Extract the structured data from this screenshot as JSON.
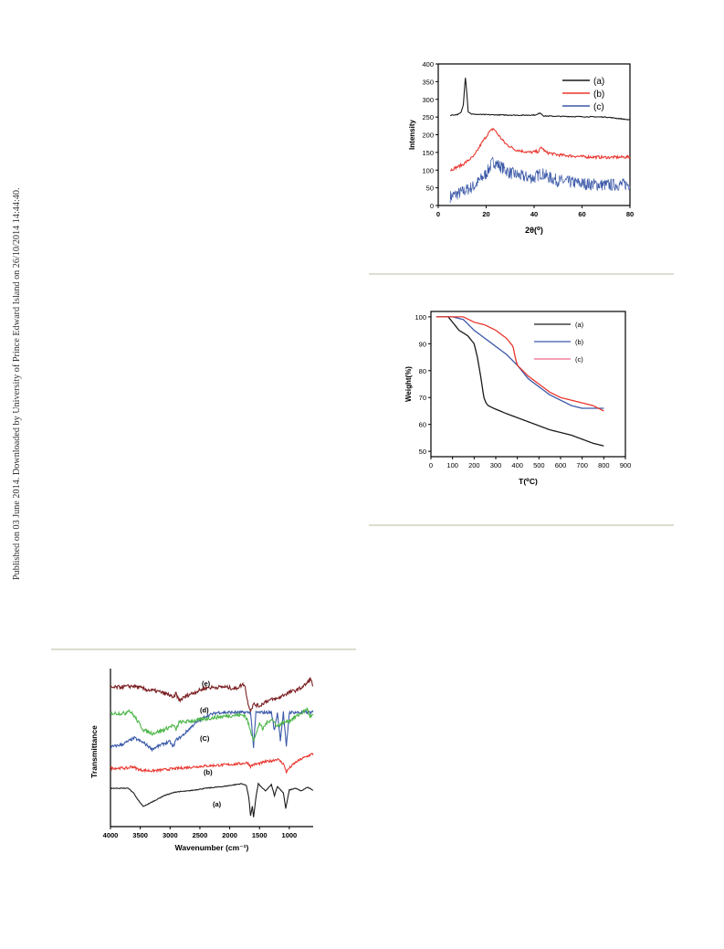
{
  "page": {
    "side_note": "Published on 03 June 2014. Downloaded by University of Prince Edward Island on 26/10/2014 14:44:40."
  },
  "colors": {
    "rule": "#dcdccf",
    "black": "#1a1a1a",
    "red": "#e8372f",
    "blue": "#3b59a8",
    "green": "#4cb648",
    "maroon": "#7a1f22",
    "pink": "#ee6b8a"
  },
  "chart_data": [
    {
      "type": "line",
      "figure": "xrd",
      "xlabel": "2θ(⁰)",
      "ylabel": "Intensity",
      "xlim": [
        0,
        80
      ],
      "ylim": [
        0,
        400
      ],
      "xticks": [
        "0",
        "20",
        "40",
        "60",
        "80"
      ],
      "yticks": [
        "0",
        "50",
        "100",
        "150",
        "200",
        "250",
        "300",
        "350",
        "400"
      ],
      "legend_placement": "top-right",
      "series": [
        {
          "name": "(a)",
          "color": "#1a1a1a",
          "noise": 1.2,
          "x": [
            5,
            8,
            9.5,
            10.5,
            11.3,
            11.8,
            12.5,
            14,
            18,
            25,
            35,
            41,
            42.5,
            44,
            50,
            60,
            70,
            80
          ],
          "y": [
            255,
            257,
            262,
            285,
            365,
            330,
            265,
            258,
            257,
            256,
            255,
            256,
            262,
            253,
            252,
            251,
            250,
            242
          ]
        },
        {
          "name": "(b)",
          "color": "#e8372f",
          "noise": 4,
          "x": [
            5,
            10,
            15,
            18,
            21,
            23,
            25,
            28,
            32,
            38,
            42,
            43,
            45,
            50,
            60,
            70,
            80
          ],
          "y": [
            100,
            115,
            140,
            175,
            205,
            218,
            200,
            175,
            158,
            150,
            153,
            165,
            150,
            143,
            138,
            136,
            137
          ]
        },
        {
          "name": "(c)",
          "color": "#3b59a8",
          "noise": 18,
          "x": [
            5,
            10,
            15,
            20,
            23,
            26,
            30,
            35,
            40,
            43,
            46,
            50,
            60,
            70,
            80
          ],
          "y": [
            25,
            38,
            55,
            90,
            125,
            110,
            92,
            82,
            78,
            92,
            80,
            70,
            62,
            58,
            60
          ]
        }
      ]
    },
    {
      "type": "line",
      "figure": "tga",
      "xlabel": "T(⁰C)",
      "ylabel": "Weight(%)",
      "xlim": [
        0,
        900
      ],
      "ylim": [
        48,
        102
      ],
      "xticks": [
        "0",
        "100",
        "200",
        "300",
        "400",
        "500",
        "600",
        "700",
        "800",
        "900"
      ],
      "yticks": [
        "50",
        "60",
        "70",
        "80",
        "90",
        "100"
      ],
      "legend_placement": "top-right",
      "series": [
        {
          "name": "(a)",
          "color": "#1a1a1a",
          "x": [
            25,
            80,
            100,
            130,
            170,
            200,
            215,
            230,
            245,
            255,
            265,
            290,
            350,
            450,
            550,
            650,
            750,
            800
          ],
          "y": [
            100,
            100,
            98,
            95,
            93,
            90,
            85,
            78,
            70,
            68,
            67,
            66,
            64,
            61,
            58,
            56,
            53,
            52
          ]
        },
        {
          "name": "(b)",
          "color": "#3b59a8",
          "x": [
            25,
            100,
            150,
            200,
            250,
            300,
            350,
            400,
            450,
            500,
            550,
            600,
            650,
            700,
            750,
            800
          ],
          "y": [
            100,
            100,
            99,
            95,
            92,
            89,
            86,
            82,
            77,
            74,
            71,
            69,
            67,
            66,
            66,
            66
          ]
        },
        {
          "name": "(c)",
          "color": "#e8372f",
          "x": [
            25,
            100,
            150,
            200,
            250,
            300,
            350,
            380,
            390,
            400,
            450,
            500,
            550,
            600,
            650,
            700,
            750,
            800
          ],
          "y": [
            100,
            100,
            100,
            98,
            97,
            95,
            92,
            89,
            85,
            82,
            78,
            75,
            72,
            70,
            69,
            68,
            67,
            65
          ]
        }
      ]
    },
    {
      "type": "line",
      "figure": "ftir",
      "xlabel": "Wavenumber (cm⁻¹)",
      "ylabel": "Transmittance",
      "xlim": [
        4000,
        600
      ],
      "xreversed": true,
      "xticks": [
        "4000",
        "3500",
        "3000",
        "2500",
        "2000",
        "1500",
        "1000"
      ],
      "yticks_shown": false,
      "series": [
        {
          "name": "(a)",
          "color": "#1a1a1a",
          "offset": 0,
          "noise": 0.4,
          "x": [
            4000,
            3700,
            3600,
            3550,
            3450,
            3300,
            3100,
            2900,
            2700,
            2400,
            2100,
            1900,
            1800,
            1720,
            1680,
            1650,
            1620,
            1600,
            1560,
            1520,
            1480,
            1400,
            1300,
            1250,
            1200,
            1100,
            1060,
            1000,
            900,
            800,
            700,
            600
          ],
          "y": [
            0,
            0,
            -6,
            -12,
            -20,
            -15,
            -8,
            -4,
            -3,
            0,
            2,
            4,
            5,
            3,
            -10,
            -30,
            -20,
            -32,
            -10,
            5,
            2,
            -3,
            4,
            -8,
            2,
            -5,
            -22,
            -2,
            0,
            -3,
            1,
            -2
          ]
        },
        {
          "name": "(b)",
          "color": "#e8372f",
          "offset": 22,
          "noise": 1.4,
          "x": [
            4000,
            3700,
            3650,
            3500,
            3300,
            3000,
            2500,
            2000,
            1800,
            1700,
            1650,
            1600,
            1500,
            1400,
            1300,
            1200,
            1100,
            1050,
            1000,
            900,
            800,
            700,
            600
          ],
          "y": [
            0,
            0,
            2,
            -2,
            -3,
            -1,
            2,
            4,
            5,
            6,
            2,
            4,
            5,
            7,
            8,
            10,
            5,
            -4,
            0,
            6,
            10,
            13,
            16
          ]
        },
        {
          "name": "(C)",
          "color": "#3b59a8",
          "offset": 45,
          "noise": 1.6,
          "x": [
            4000,
            3800,
            3600,
            3450,
            3300,
            3100,
            3000,
            2950,
            2900,
            2800,
            2600,
            2400,
            2200,
            2000,
            1800,
            1650,
            1600,
            1560,
            1500,
            1300,
            1250,
            1200,
            1150,
            1100,
            1050,
            1000,
            900,
            800,
            700,
            600
          ],
          "y": [
            0,
            3,
            10,
            5,
            -2,
            4,
            6,
            0,
            8,
            12,
            25,
            34,
            38,
            38,
            38,
            38,
            0,
            38,
            38,
            38,
            18,
            38,
            8,
            38,
            0,
            38,
            38,
            38,
            38,
            38
          ]
        },
        {
          "name": "(d)",
          "color": "#4cb648",
          "offset": 82,
          "noise": 2,
          "x": [
            4000,
            3750,
            3700,
            3600,
            3450,
            3300,
            3100,
            2950,
            2900,
            2850,
            2600,
            2200,
            1900,
            1750,
            1700,
            1650,
            1600,
            1550,
            1500,
            1450,
            1400,
            1300,
            1200,
            1100,
            1000,
            900,
            800,
            700,
            650,
            600
          ],
          "y": [
            0,
            0,
            4,
            -3,
            -18,
            -22,
            -18,
            -13,
            -18,
            -10,
            -8,
            -4,
            -2,
            -2,
            -8,
            -20,
            -28,
            -22,
            -10,
            -18,
            -12,
            -6,
            -14,
            -10,
            -8,
            -4,
            0,
            5,
            -4,
            -2
          ]
        },
        {
          "name": "(e)",
          "color": "#7a1f22",
          "offset": 110,
          "noise": 2,
          "x": [
            4000,
            3800,
            3600,
            3400,
            3200,
            3000,
            2950,
            2900,
            2850,
            2700,
            2400,
            2100,
            1900,
            1800,
            1750,
            1700,
            1650,
            1600,
            1500,
            1400,
            1300,
            1200,
            1100,
            1000,
            900,
            800,
            700,
            650,
            600
          ],
          "y": [
            0,
            1,
            2,
            -2,
            -4,
            -8,
            -12,
            -6,
            -14,
            -8,
            0,
            1,
            -1,
            3,
            4,
            -15,
            -25,
            -18,
            -20,
            -15,
            -13,
            -12,
            -8,
            -5,
            -3,
            0,
            5,
            10,
            2
          ]
        }
      ],
      "labels": [
        "(a)",
        "(b)",
        "(C)",
        "(d)",
        "(e)"
      ]
    }
  ]
}
